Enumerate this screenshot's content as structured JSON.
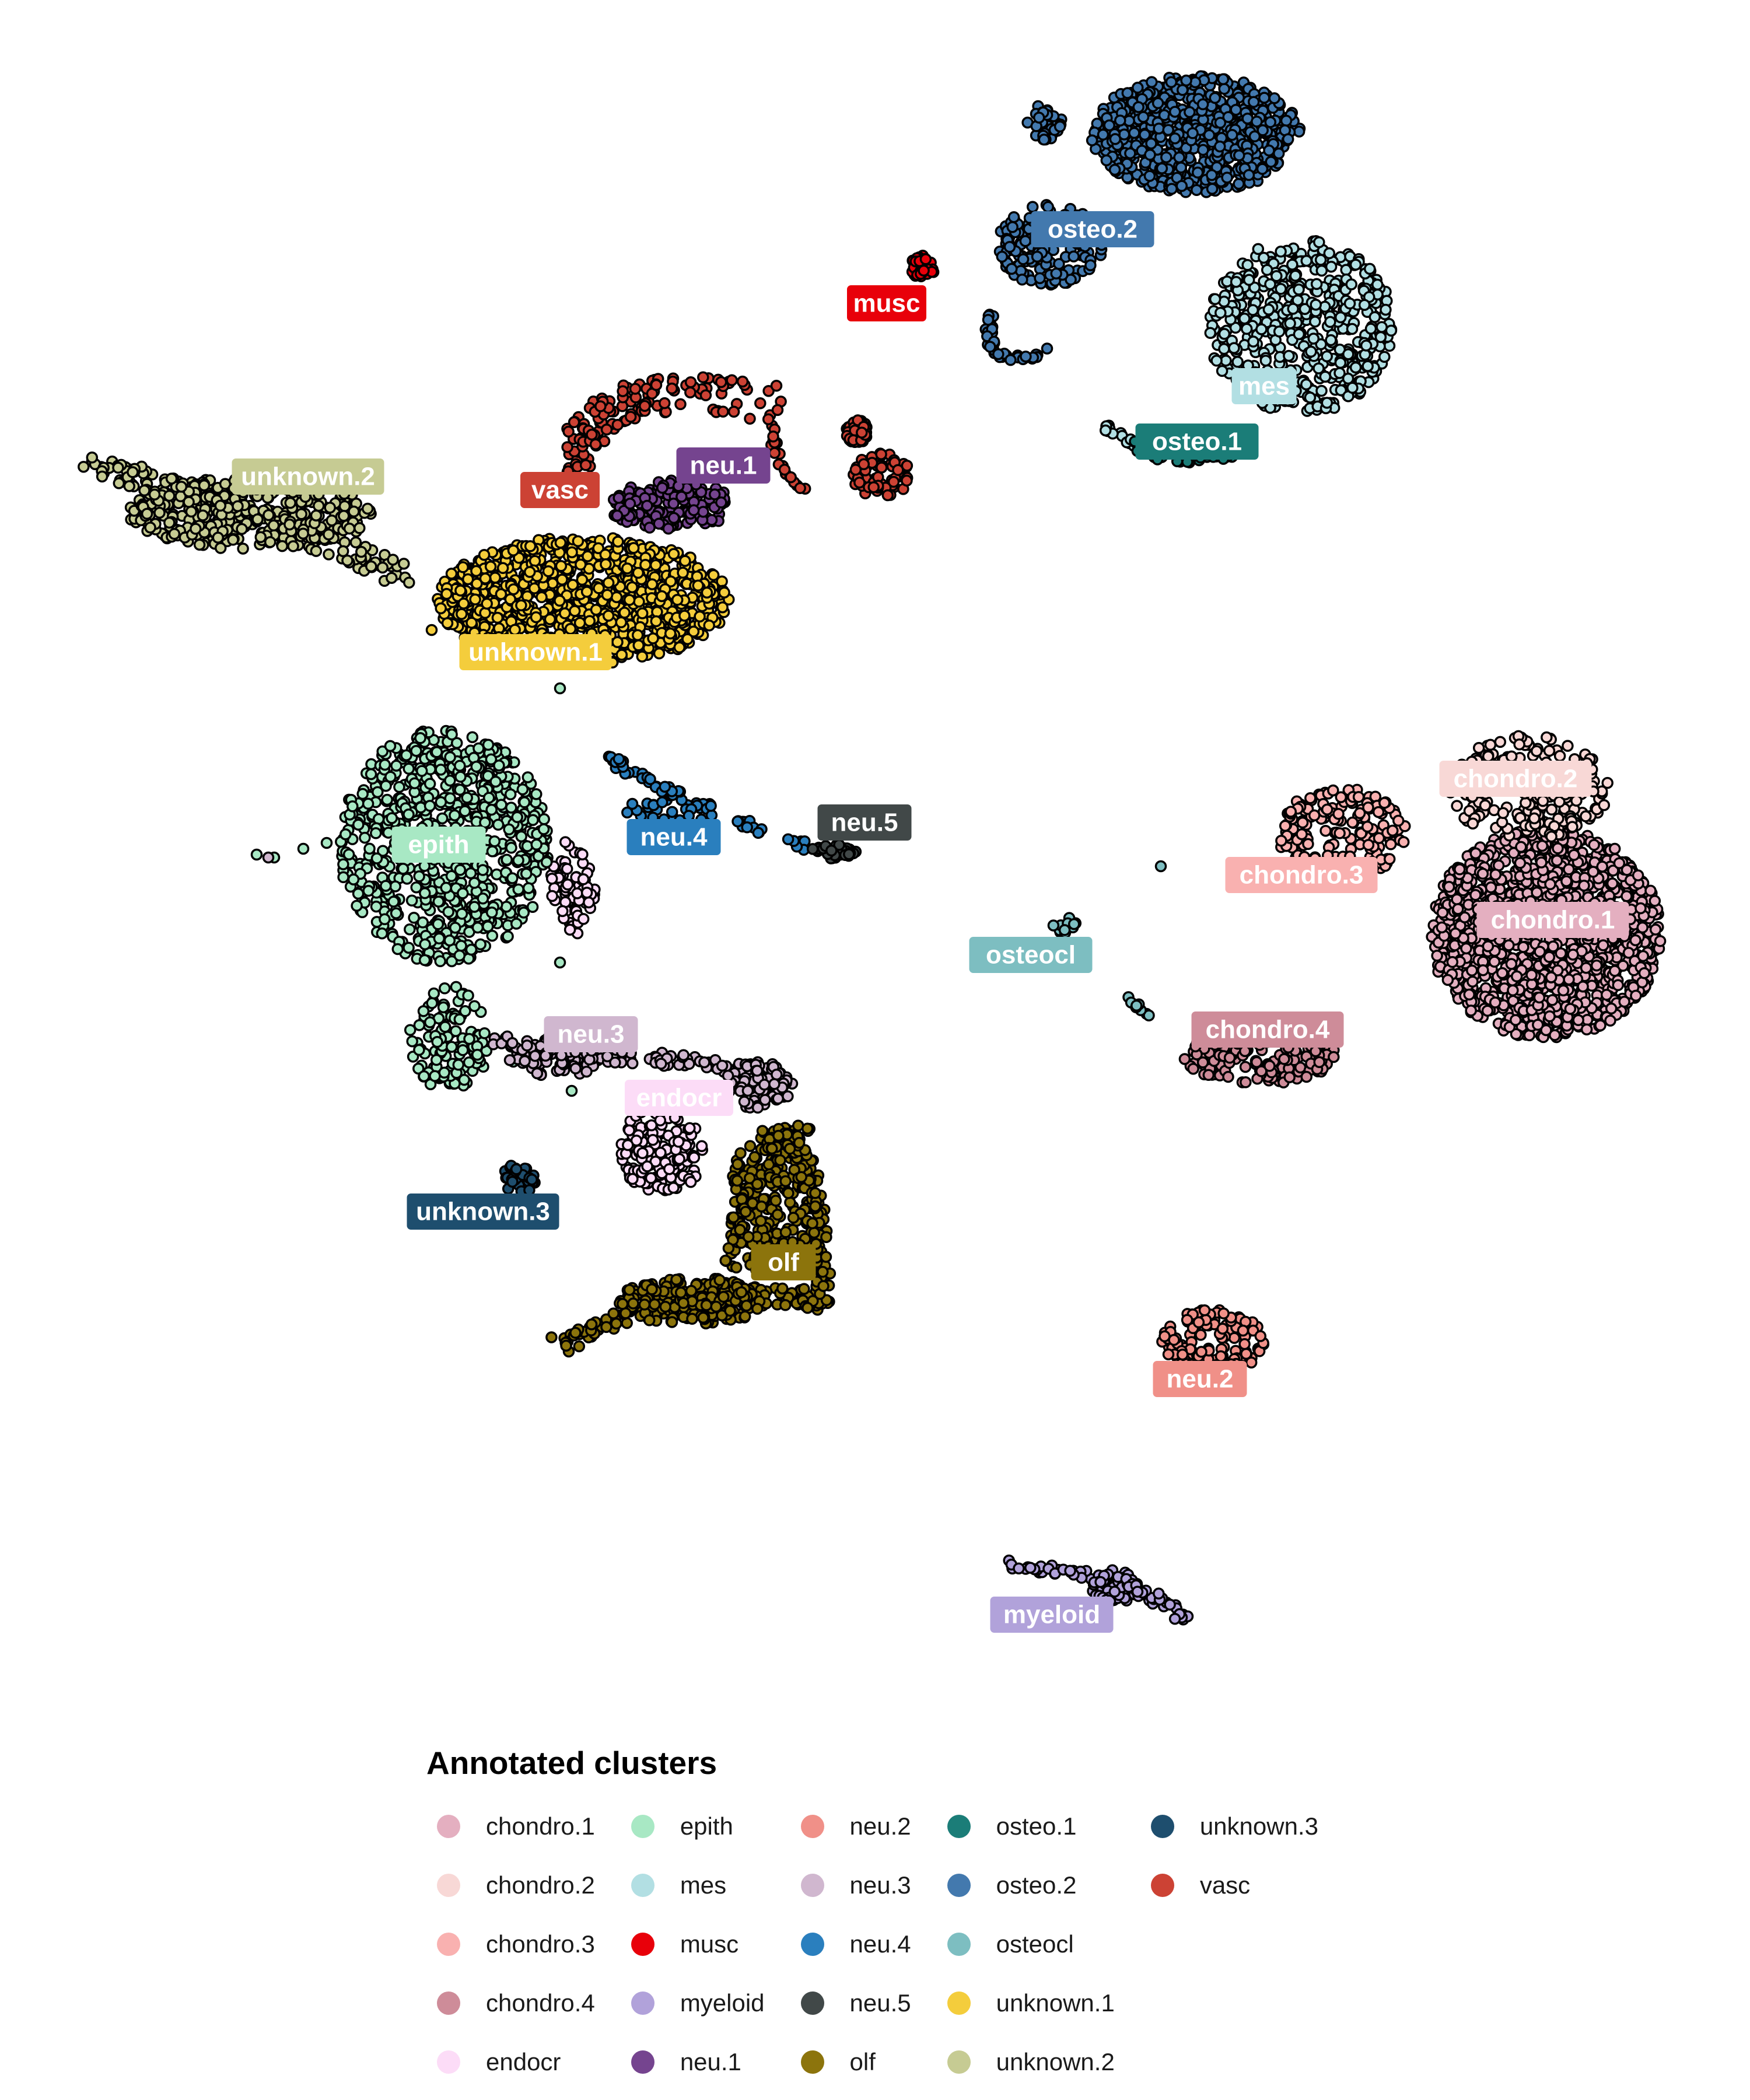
{
  "chart_data": {
    "type": "scatter",
    "title": "",
    "xlabel": "",
    "ylabel": "",
    "legend_title": "Annotated clusters",
    "legend_placement": "bottom",
    "grid": false,
    "axes": false,
    "series": [
      {
        "name": "chondro.1",
        "color": "#E4AFC0"
      },
      {
        "name": "chondro.2",
        "color": "#F8D8D6"
      },
      {
        "name": "chondro.3",
        "color": "#F9B1B0"
      },
      {
        "name": "chondro.4",
        "color": "#CE8C99"
      },
      {
        "name": "endocr",
        "color": "#FCDCF7"
      },
      {
        "name": "epith",
        "color": "#A8E8C4"
      },
      {
        "name": "mes",
        "color": "#B2DFE3"
      },
      {
        "name": "musc",
        "color": "#E8000A"
      },
      {
        "name": "myeloid",
        "color": "#B1A2DA"
      },
      {
        "name": "neu.1",
        "color": "#75448F"
      },
      {
        "name": "neu.2",
        "color": "#F09088"
      },
      {
        "name": "neu.3",
        "color": "#D0B7CF"
      },
      {
        "name": "neu.4",
        "color": "#2A7FBE"
      },
      {
        "name": "neu.5",
        "color": "#414848"
      },
      {
        "name": "olf",
        "color": "#8C740C"
      },
      {
        "name": "osteo.1",
        "color": "#1B7D78"
      },
      {
        "name": "osteo.2",
        "color": "#4379AE"
      },
      {
        "name": "osteocl",
        "color": "#7DBEC1"
      },
      {
        "name": "unknown.1",
        "color": "#F4CD3C"
      },
      {
        "name": "unknown.2",
        "color": "#C6CB93"
      },
      {
        "name": "unknown.3",
        "color": "#1E4E6E"
      },
      {
        "name": "vasc",
        "color": "#CC4234"
      }
    ],
    "cluster_labels": [
      {
        "text": "osteo.2",
        "series": "osteo.2"
      },
      {
        "text": "musc",
        "series": "musc"
      },
      {
        "text": "mes",
        "series": "mes"
      },
      {
        "text": "osteo.1",
        "series": "osteo.1"
      },
      {
        "text": "unknown.2",
        "series": "unknown.2"
      },
      {
        "text": "vasc",
        "series": "vasc"
      },
      {
        "text": "neu.1",
        "series": "neu.1"
      },
      {
        "text": "unknown.1",
        "series": "unknown.1"
      },
      {
        "text": "chondro.2",
        "series": "chondro.2"
      },
      {
        "text": "neu.5",
        "series": "neu.5"
      },
      {
        "text": "neu.4",
        "series": "neu.4"
      },
      {
        "text": "epith",
        "series": "epith"
      },
      {
        "text": "chondro.3",
        "series": "chondro.3"
      },
      {
        "text": "chondro.1",
        "series": "chondro.1"
      },
      {
        "text": "osteocl",
        "series": "osteocl"
      },
      {
        "text": "chondro.4",
        "series": "chondro.4"
      },
      {
        "text": "neu.3",
        "series": "neu.3"
      },
      {
        "text": "endocr",
        "series": "endocr"
      },
      {
        "text": "unknown.3",
        "series": "unknown.3"
      },
      {
        "text": "olf",
        "series": "olf"
      },
      {
        "text": "neu.2",
        "series": "neu.2"
      },
      {
        "text": "myeloid",
        "series": "myeloid"
      }
    ]
  }
}
